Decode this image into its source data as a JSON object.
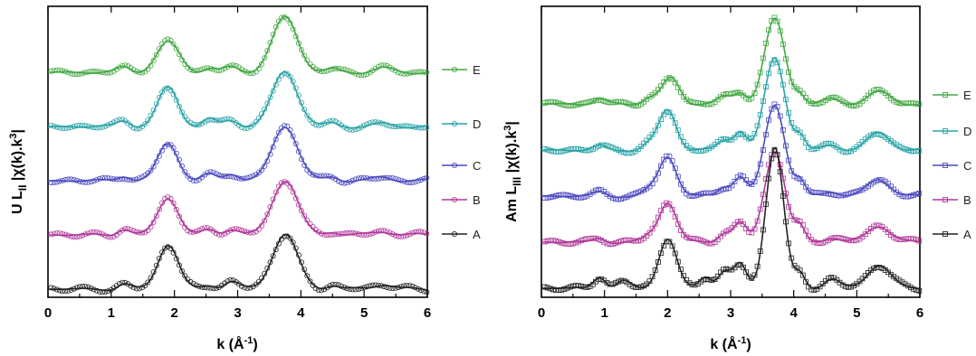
{
  "chart_data": [
    {
      "type": "line",
      "panel": "left",
      "xlabel": "k (Å⁻¹)",
      "ylabel": "U L_II |χ(k).k³|",
      "xlim": [
        0,
        6
      ],
      "x_ticks": [
        "0",
        "1",
        "2",
        "3",
        "4",
        "5",
        "6"
      ],
      "grid": false,
      "legend_position": "right",
      "series": [
        {
          "name": "E",
          "color": "#43a843",
          "offset": 4.0,
          "peaks": [
            [
              1.2,
              0.1,
              0.1
            ],
            [
              1.9,
              0.6,
              0.18
            ],
            [
              2.55,
              0.08,
              0.1
            ],
            [
              2.9,
              0.1,
              0.12
            ],
            [
              3.75,
              1.1,
              0.2
            ],
            [
              4.5,
              0.06,
              0.1
            ],
            [
              5.3,
              0.08,
              0.15
            ]
          ]
        },
        {
          "name": "D",
          "color": "#2aa3a7",
          "offset": 3.0,
          "peaks": [
            [
              1.2,
              0.12,
              0.1
            ],
            [
              1.9,
              0.78,
              0.16
            ],
            [
              2.55,
              0.15,
              0.1
            ],
            [
              2.9,
              0.12,
              0.12
            ],
            [
              3.75,
              1.1,
              0.2
            ],
            [
              4.5,
              0.06,
              0.1
            ],
            [
              5.3,
              0.05,
              0.15
            ]
          ]
        },
        {
          "name": "C",
          "color": "#4a4ac0",
          "offset": 2.0,
          "peaks": [
            [
              1.2,
              0.1,
              0.1
            ],
            [
              1.9,
              0.75,
              0.16
            ],
            [
              2.55,
              0.12,
              0.1
            ],
            [
              2.9,
              0.15,
              0.12
            ],
            [
              3.75,
              1.1,
              0.2
            ],
            [
              4.5,
              0.08,
              0.1
            ],
            [
              5.3,
              0.07,
              0.15
            ]
          ]
        },
        {
          "name": "B",
          "color": "#b0389a",
          "offset": 1.0,
          "peaks": [
            [
              1.2,
              0.12,
              0.1
            ],
            [
              1.9,
              0.75,
              0.16
            ],
            [
              2.55,
              0.1,
              0.1
            ],
            [
              2.9,
              0.12,
              0.12
            ],
            [
              3.75,
              1.1,
              0.2
            ],
            [
              4.5,
              0.07,
              0.1
            ],
            [
              5.3,
              0.07,
              0.15
            ]
          ]
        },
        {
          "name": "A",
          "color": "#222222",
          "offset": 0.0,
          "peaks": [
            [
              1.2,
              0.1,
              0.1
            ],
            [
              1.9,
              0.9,
              0.16
            ],
            [
              2.55,
              0.08,
              0.1
            ],
            [
              2.9,
              0.15,
              0.12
            ],
            [
              3.75,
              1.1,
              0.2
            ],
            [
              4.5,
              0.08,
              0.1
            ],
            [
              5.3,
              0.1,
              0.15
            ]
          ]
        }
      ]
    },
    {
      "type": "line",
      "panel": "right",
      "xlabel": "k (Å⁻¹)",
      "ylabel": "Am L_III |χ(k).k³|",
      "xlim": [
        0,
        6
      ],
      "x_ticks": [
        "0",
        "1",
        "2",
        "3",
        "4",
        "5",
        "6"
      ],
      "grid": false,
      "legend_position": "right",
      "series": [
        {
          "name": "E",
          "color": "#43a843",
          "offset": 4.0,
          "peaks": [
            [
              0.9,
              0.12,
              0.1
            ],
            [
              1.7,
              0.12,
              0.1
            ],
            [
              2.05,
              0.55,
              0.14
            ],
            [
              2.9,
              0.15,
              0.1
            ],
            [
              3.15,
              0.25,
              0.1
            ],
            [
              3.7,
              1.8,
              0.16
            ],
            [
              4.1,
              0.2,
              0.08
            ],
            [
              4.6,
              0.1,
              0.12
            ],
            [
              5.35,
              0.25,
              0.18
            ]
          ]
        },
        {
          "name": "D",
          "color": "#2aa3a7",
          "offset": 3.0,
          "peaks": [
            [
              0.9,
              0.1,
              0.1
            ],
            [
              1.7,
              0.1,
              0.1
            ],
            [
              2.0,
              0.85,
              0.14
            ],
            [
              2.9,
              0.2,
              0.1
            ],
            [
              3.15,
              0.4,
              0.1
            ],
            [
              3.7,
              1.95,
              0.16
            ],
            [
              4.1,
              0.3,
              0.08
            ],
            [
              4.6,
              0.1,
              0.12
            ],
            [
              5.35,
              0.35,
              0.18
            ]
          ]
        },
        {
          "name": "C",
          "color": "#4a4ac0",
          "offset": 2.0,
          "peaks": [
            [
              0.9,
              0.1,
              0.1
            ],
            [
              1.7,
              0.1,
              0.1
            ],
            [
              2.0,
              0.85,
              0.14
            ],
            [
              2.9,
              0.2,
              0.1
            ],
            [
              3.15,
              0.4,
              0.1
            ],
            [
              3.7,
              1.95,
              0.16
            ],
            [
              4.1,
              0.3,
              0.08
            ],
            [
              4.6,
              0.1,
              0.12
            ],
            [
              5.35,
              0.35,
              0.18
            ]
          ]
        },
        {
          "name": "B",
          "color": "#b0389a",
          "offset": 1.0,
          "peaks": [
            [
              0.9,
              0.1,
              0.1
            ],
            [
              1.7,
              0.1,
              0.1
            ],
            [
              2.0,
              0.85,
              0.14
            ],
            [
              2.9,
              0.2,
              0.1
            ],
            [
              3.15,
              0.4,
              0.1
            ],
            [
              3.7,
              1.95,
              0.16
            ],
            [
              4.1,
              0.3,
              0.08
            ],
            [
              4.6,
              0.1,
              0.12
            ],
            [
              5.35,
              0.35,
              0.18
            ]
          ]
        },
        {
          "name": "A",
          "color": "#222222",
          "offset": 0.0,
          "peaks": [
            [
              0.9,
              0.3,
              0.1
            ],
            [
              1.3,
              0.15,
              0.1
            ],
            [
              2.0,
              1.05,
              0.14
            ],
            [
              2.6,
              0.25,
              0.1
            ],
            [
              2.9,
              0.35,
              0.1
            ],
            [
              3.15,
              0.5,
              0.1
            ],
            [
              3.7,
              3.0,
              0.14
            ],
            [
              4.1,
              0.3,
              0.08
            ],
            [
              4.6,
              0.2,
              0.12
            ],
            [
              5.35,
              0.5,
              0.18
            ]
          ]
        }
      ]
    }
  ]
}
